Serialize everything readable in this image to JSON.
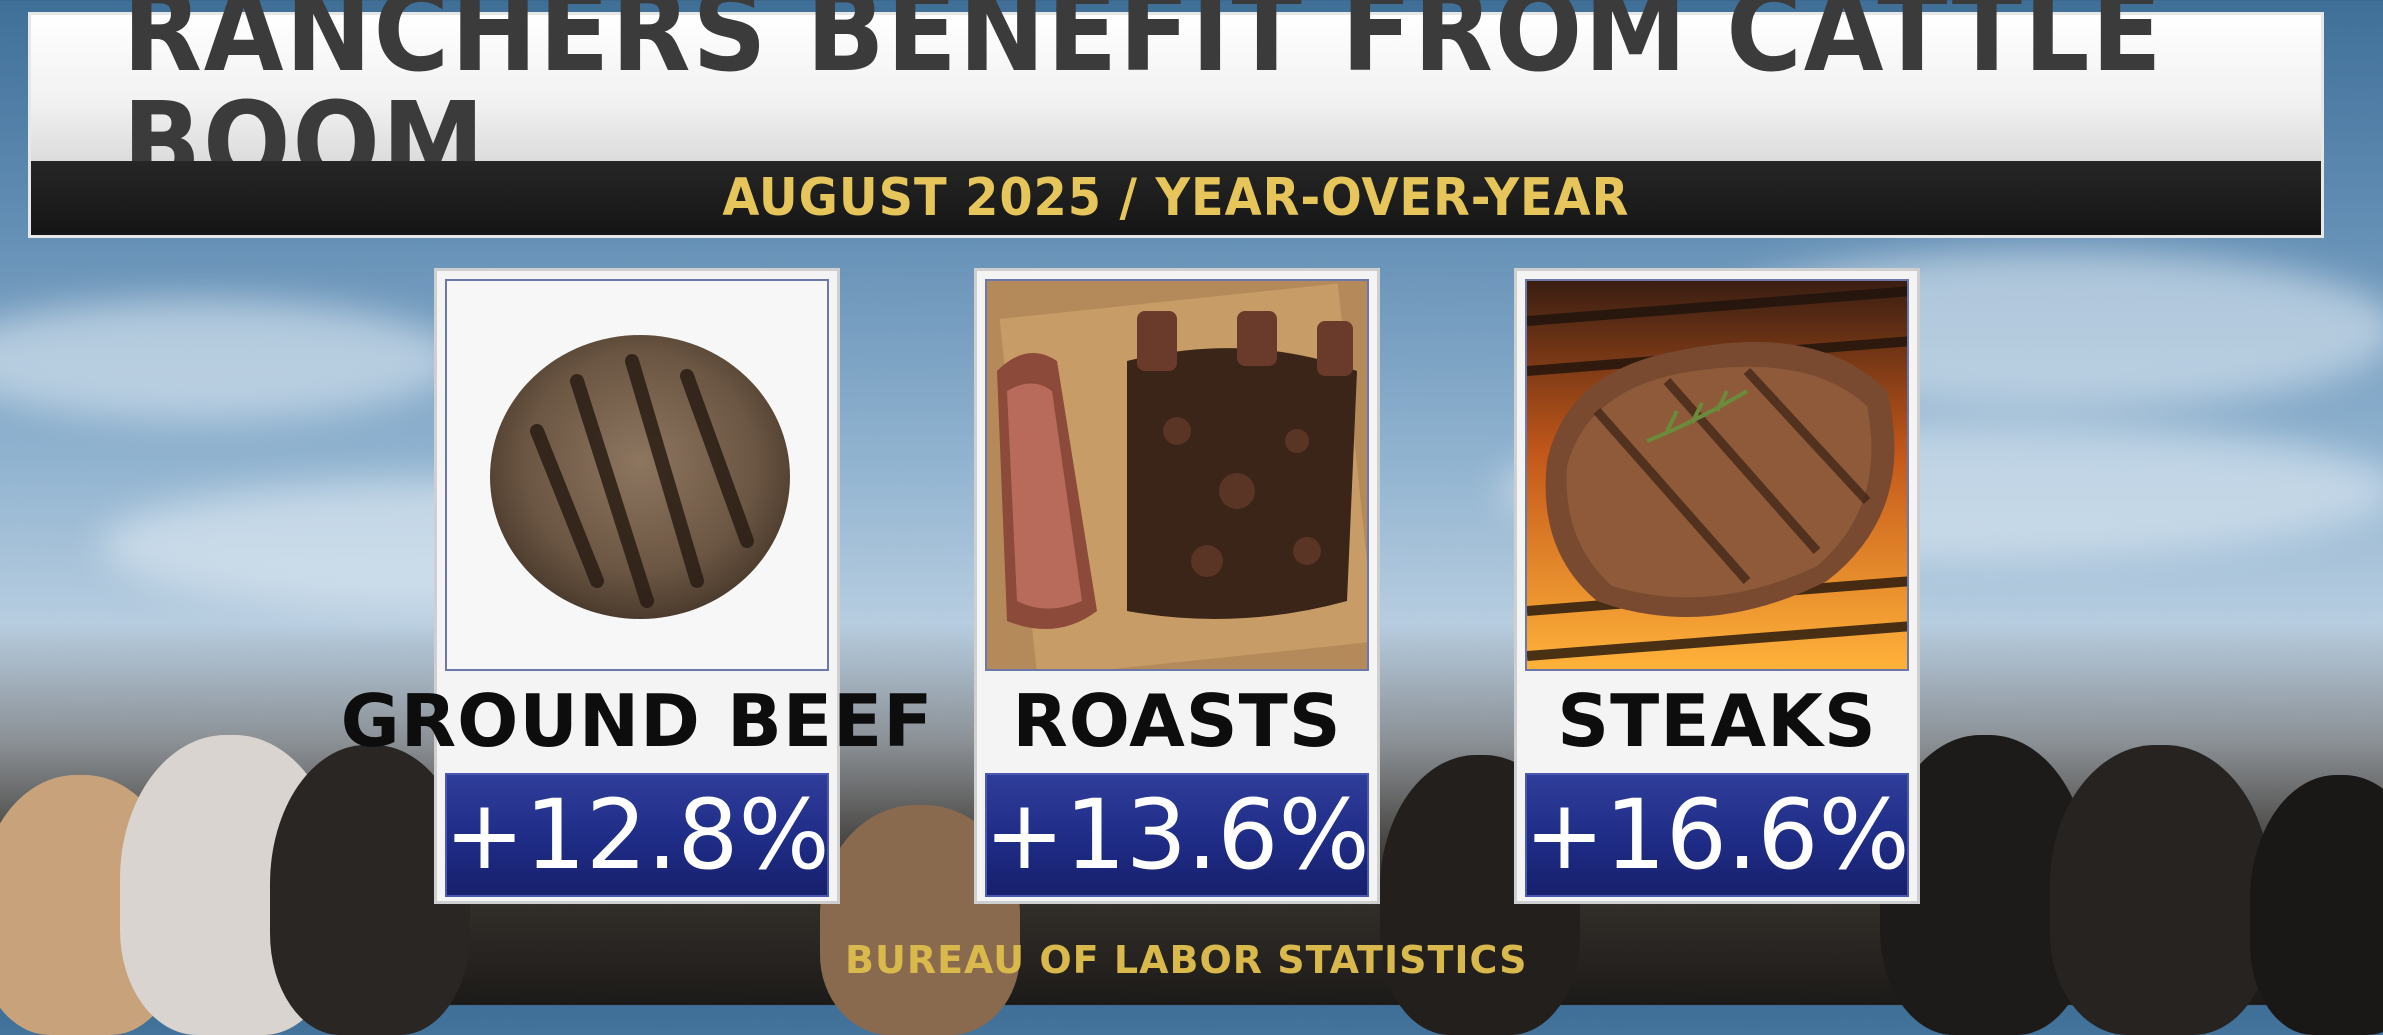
{
  "header": {
    "title": "RANCHERS BENEFIT FROM CATTLE BOOM",
    "subtitle": "AUGUST 2025 / YEAR-OVER-YEAR"
  },
  "cards": [
    {
      "label": "GROUND BEEF",
      "value": "+12.8%",
      "icon": "burger-patty-icon"
    },
    {
      "label": "ROASTS",
      "value": "+13.6%",
      "icon": "beef-roast-icon"
    },
    {
      "label": "STEAKS",
      "value": "+16.6%",
      "icon": "grilled-steak-icon"
    }
  ],
  "source": "BUREAU OF LABOR STATISTICS",
  "colors": {
    "value_box": "#1f2c86",
    "subtitle": "#e6c65a",
    "source": "#d9b84c"
  }
}
